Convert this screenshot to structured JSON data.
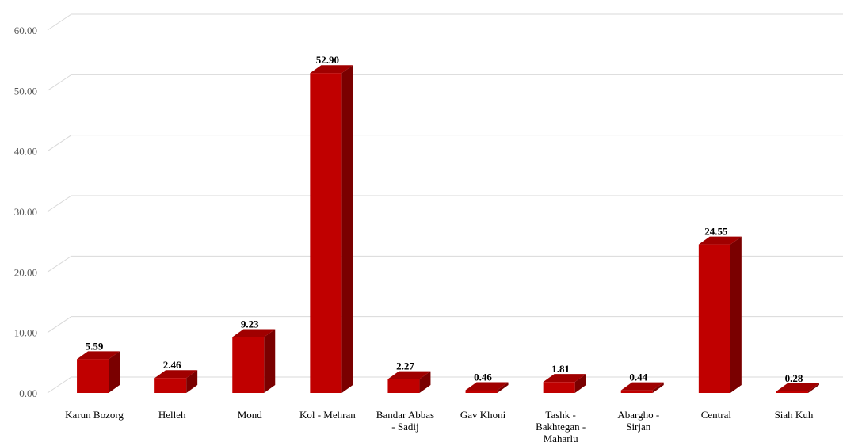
{
  "chart_data": {
    "type": "bar",
    "style": "3d-column",
    "categories": [
      [
        "Karun Bozorg"
      ],
      [
        "Helleh"
      ],
      [
        "Mond"
      ],
      [
        "Kol - Mehran"
      ],
      [
        "Bandar Abbas",
        "- Sadij"
      ],
      [
        "Gav Khoni"
      ],
      [
        "Tashk -",
        "Bakhtegan -",
        "Maharlu"
      ],
      [
        "Abargho -",
        "Sirjan"
      ],
      [
        "Central"
      ],
      [
        "Siah Kuh"
      ]
    ],
    "values": [
      5.59,
      2.46,
      9.23,
      52.9,
      2.27,
      0.46,
      1.81,
      0.44,
      24.55,
      0.28
    ],
    "value_labels": [
      "5.59",
      "2.46",
      "9.23",
      "52.90",
      "2.27",
      "0.46",
      "1.81",
      "0.44",
      "24.55",
      "0.28"
    ],
    "y_ticks": [
      "0.00",
      "10.00",
      "20.00",
      "30.00",
      "40.00",
      "50.00",
      "60.00"
    ],
    "ylim": [
      0,
      60
    ],
    "grid": true,
    "legend": false,
    "colors": {
      "front": "#c00000",
      "top": "#a00000",
      "side": "#7a0000",
      "grid": "#d9d9d9"
    }
  }
}
